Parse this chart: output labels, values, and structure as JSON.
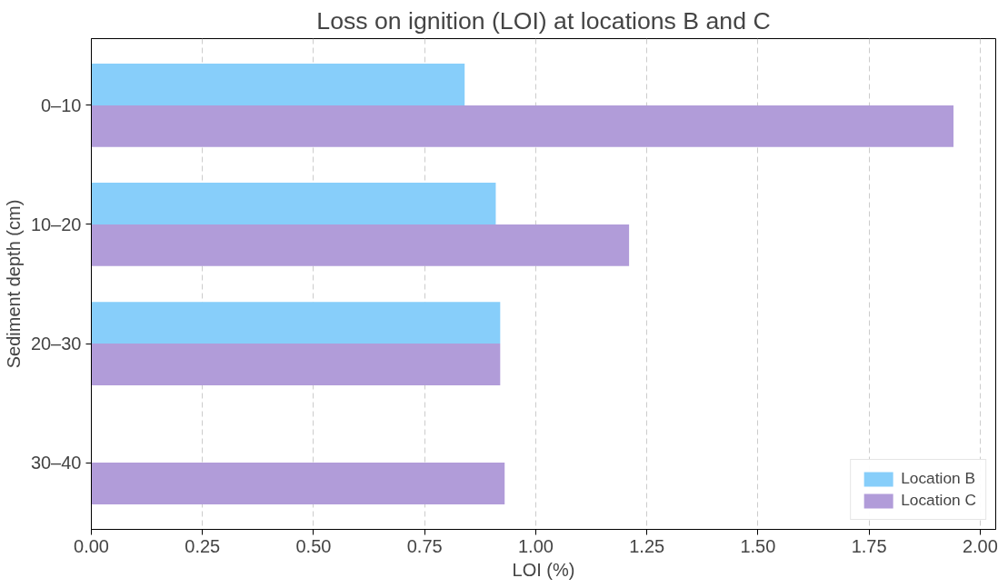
{
  "chart_data": {
    "type": "bar",
    "orientation": "horizontal",
    "title": "Loss on ignition (LOI) at locations B and C",
    "xlabel": "LOI (%)",
    "ylabel": "Sediment depth (cm)",
    "categories": [
      "0–10",
      "10–20",
      "20–30",
      "30–40"
    ],
    "series": [
      {
        "name": "Location B",
        "color": "#87cefa",
        "values": [
          0.84,
          0.91,
          0.92,
          null
        ]
      },
      {
        "name": "Location C",
        "color": "#b19cd9",
        "values": [
          1.94,
          1.21,
          0.92,
          0.93
        ]
      }
    ],
    "xlim": [
      0,
      2.035
    ],
    "xticks": [
      {
        "value": 0,
        "label": "0.00"
      },
      {
        "value": 0.25,
        "label": "0.25"
      },
      {
        "value": 0.5,
        "label": "0.50"
      },
      {
        "value": 0.75,
        "label": "0.75"
      },
      {
        "value": 1,
        "label": "1.00"
      },
      {
        "value": 1.25,
        "label": "1.25"
      },
      {
        "value": 1.5,
        "label": "1.50"
      },
      {
        "value": 1.75,
        "label": "1.75"
      },
      {
        "value": 2,
        "label": "2.00"
      }
    ],
    "grid": "x",
    "legend": "bottom right"
  }
}
